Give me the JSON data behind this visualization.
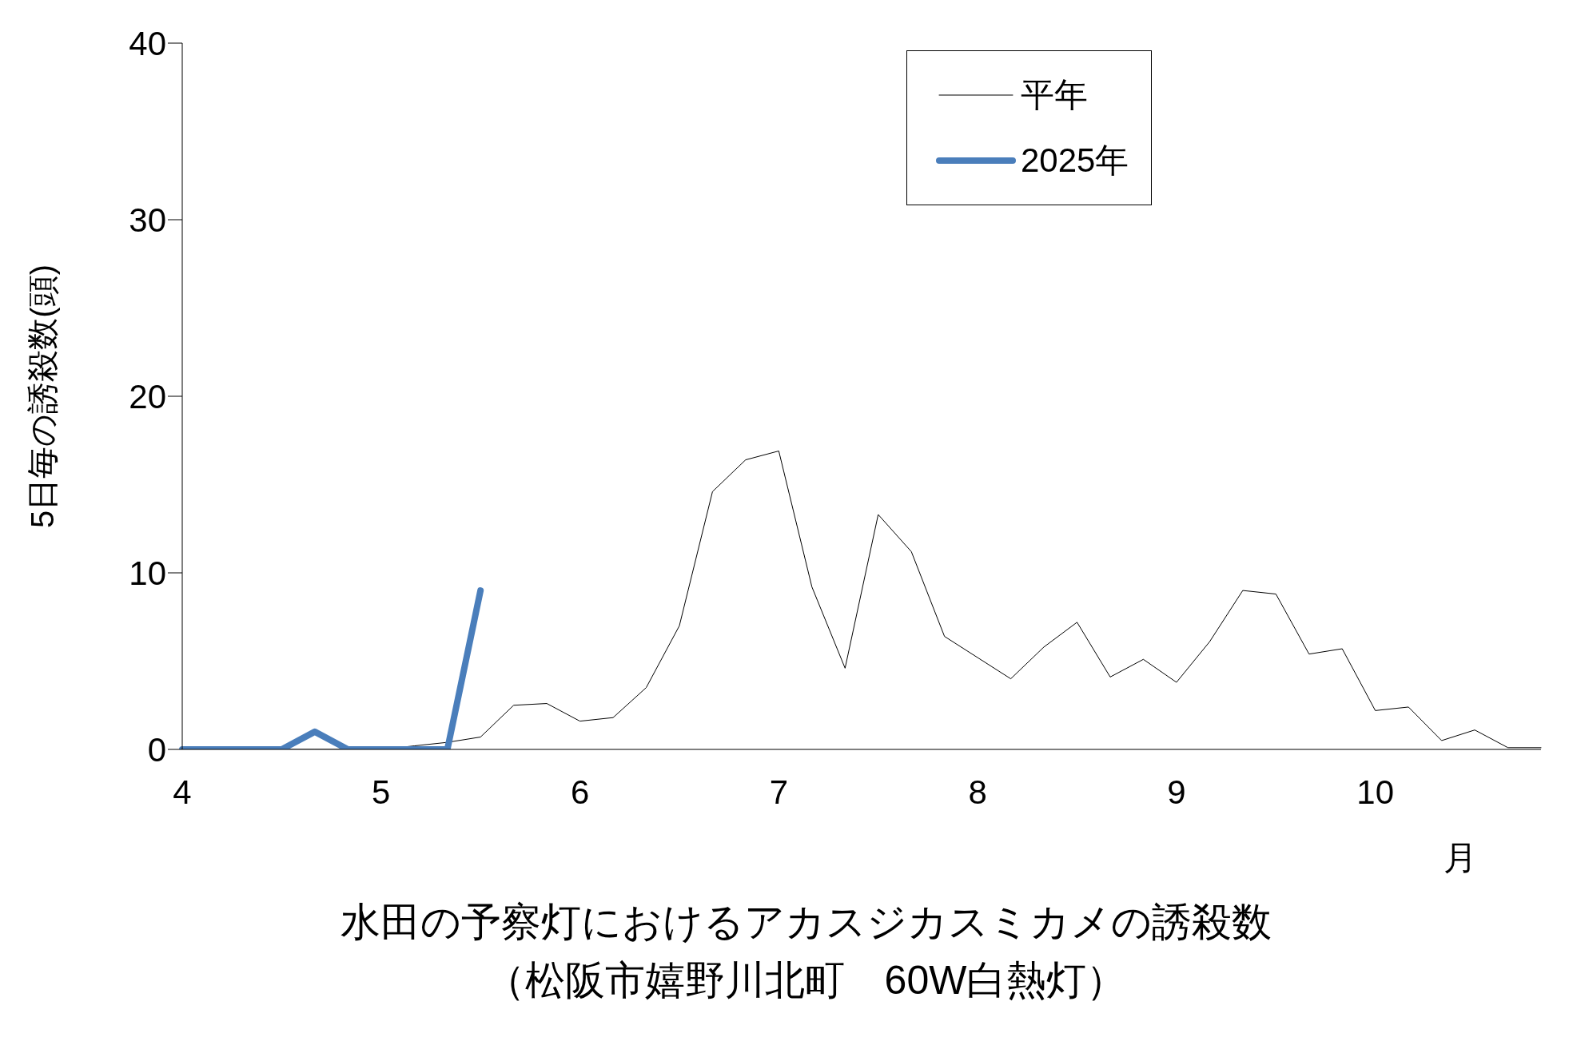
{
  "chart_data": {
    "type": "line",
    "title": "水田の予察灯におけるアカスジカスミカメの誘殺数",
    "subtitle": "（松阪市嬉野川北町　60W白熱灯）",
    "xlabel": "月",
    "ylabel": "5日毎の誘殺数(頭)",
    "categories": [
      "4",
      null,
      null,
      null,
      null,
      null,
      "5",
      null,
      null,
      null,
      null,
      null,
      "6",
      null,
      null,
      null,
      null,
      null,
      "7",
      null,
      null,
      null,
      null,
      null,
      "8",
      null,
      null,
      null,
      null,
      null,
      "9",
      null,
      null,
      null,
      null,
      null,
      "10",
      null,
      null,
      null,
      null,
      null
    ],
    "series": [
      {
        "name": "平年",
        "color": "#000000",
        "values": [
          0,
          0,
          0,
          0,
          0,
          0,
          0,
          0.2,
          0.4,
          0.7,
          2.5,
          2.6,
          1.6,
          1.8,
          3.5,
          7.0,
          14.6,
          16.4,
          16.9,
          9.2,
          4.6,
          13.3,
          11.2,
          6.4,
          5.2,
          4.0,
          5.8,
          7.2,
          4.1,
          5.1,
          3.8,
          6.1,
          9.0,
          8.8,
          5.4,
          5.7,
          2.2,
          2.4,
          0.5,
          1.1,
          0.1,
          0.1
        ]
      },
      {
        "name": "2025年",
        "color": "#4a7ebb",
        "values": [
          0,
          0,
          0,
          0,
          1.0,
          0,
          0,
          0,
          0,
          9.0,
          null,
          null,
          null,
          null,
          null,
          null,
          null,
          null,
          null,
          null,
          null,
          null,
          null,
          null,
          null,
          null,
          null,
          null,
          null,
          null,
          null,
          null,
          null,
          null,
          null,
          null,
          null,
          null,
          null,
          null,
          null,
          null
        ]
      }
    ],
    "ylim": [
      0,
      40
    ],
    "yticks": [
      0,
      10,
      20,
      30,
      40
    ],
    "grid": false,
    "legend": "top right",
    "marker": "none",
    "line_style": "solid"
  }
}
